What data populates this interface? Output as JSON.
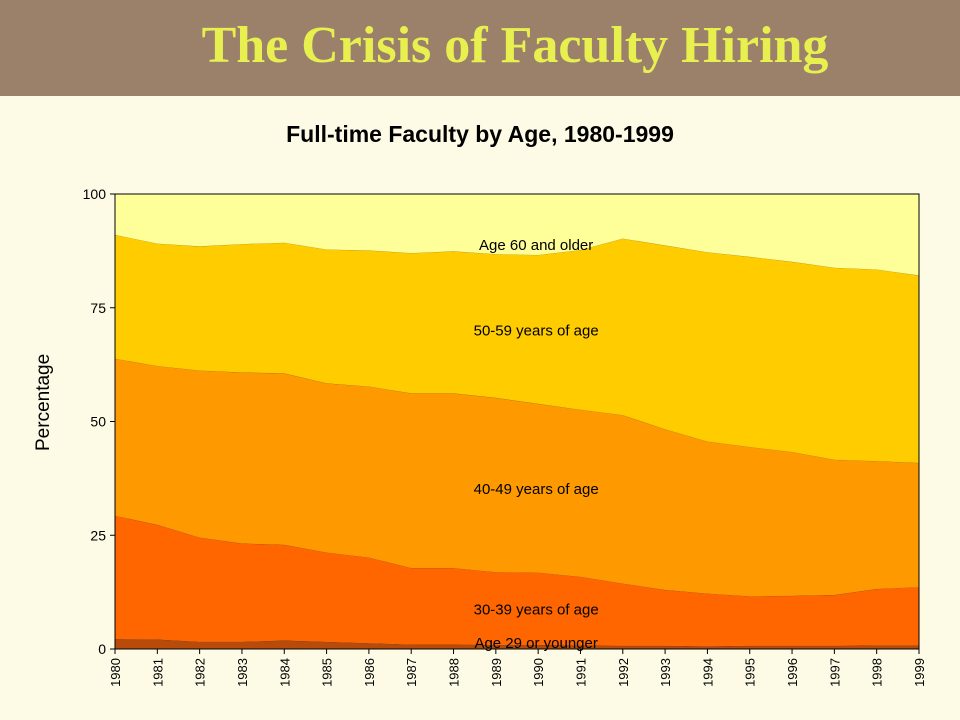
{
  "slide": {
    "title": "The Crisis of Faculty Hiring"
  },
  "colors": {
    "banner": "#9b806a",
    "title_text": "#e8f050",
    "background": "#fdfbe6",
    "series": [
      "#b84a0a",
      "#ff6600",
      "#ff9900",
      "#ffcc00",
      "#ffff99"
    ]
  },
  "chart_data": {
    "type": "area",
    "stacked": true,
    "title": "Full-time Faculty by Age, 1980-1999",
    "xlabel": "",
    "ylabel": "Percentage",
    "ylim": [
      0,
      100
    ],
    "yticks": [
      0,
      25,
      50,
      75,
      100
    ],
    "grid": false,
    "legend": "labels inside areas",
    "x": [
      "1980",
      "1981",
      "1982",
      "1983",
      "1984",
      "1985",
      "1986",
      "1987",
      "1988",
      "1989",
      "1990",
      "1991",
      "1992",
      "1993",
      "1994",
      "1995",
      "1996",
      "1997",
      "1998",
      "1999"
    ],
    "series": [
      {
        "name": "Age 29 or younger",
        "values": [
          2.2,
          2.1,
          1.6,
          1.6,
          1.9,
          1.6,
          1.3,
          1.0,
          1.0,
          0.9,
          0.9,
          0.8,
          0.7,
          0.7,
          0.6,
          0.7,
          0.7,
          0.7,
          0.8,
          0.8
        ]
      },
      {
        "name": "30-39 years of age",
        "values": [
          27.1,
          25.2,
          22.9,
          21.6,
          21.0,
          19.6,
          18.8,
          16.8,
          16.8,
          16.0,
          15.9,
          15.1,
          13.7,
          12.3,
          11.6,
          10.9,
          11.0,
          11.2,
          12.4,
          12.8
        ]
      },
      {
        "name": "40-49 years of age",
        "values": [
          34.5,
          34.9,
          36.7,
          37.6,
          37.7,
          37.2,
          37.6,
          38.4,
          38.4,
          38.3,
          37.1,
          36.7,
          37.0,
          35.3,
          33.4,
          32.8,
          31.6,
          29.7,
          28.1,
          27.3
        ]
      },
      {
        "name": "50-59 years of age",
        "values": [
          27.2,
          26.9,
          27.3,
          28.2,
          28.7,
          29.4,
          29.9,
          30.8,
          31.2,
          31.6,
          32.7,
          35.1,
          38.8,
          40.4,
          41.6,
          41.8,
          41.8,
          42.2,
          42.1,
          41.2
        ]
      },
      {
        "name": "Age 60 and older",
        "values": [
          9.0,
          10.9,
          11.5,
          11.0,
          10.7,
          12.2,
          12.4,
          13.0,
          12.6,
          13.2,
          13.4,
          12.3,
          9.8,
          11.3,
          12.8,
          13.8,
          14.9,
          16.2,
          16.6,
          17.9
        ]
      }
    ]
  }
}
